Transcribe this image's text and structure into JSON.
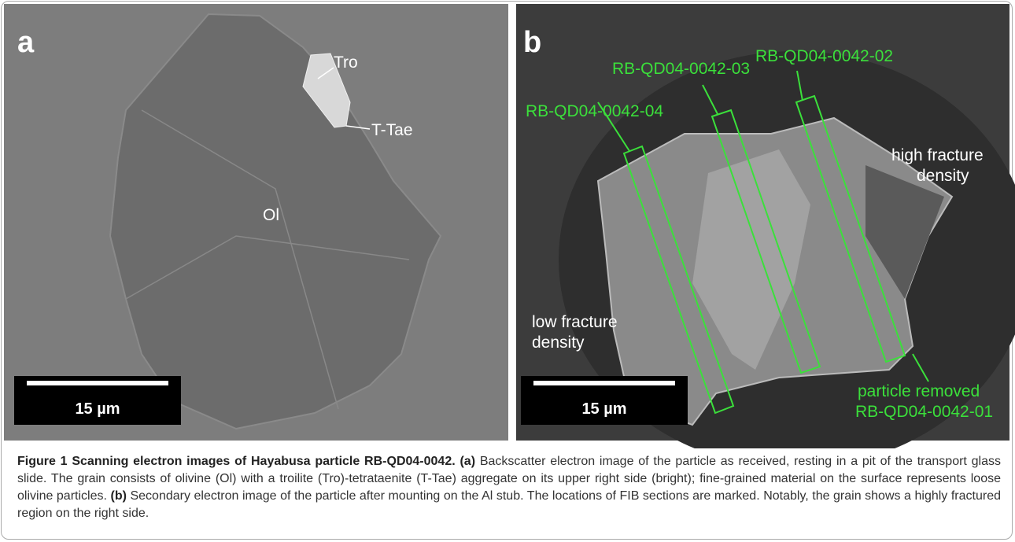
{
  "panels": [
    {
      "label": "a",
      "annotations": [
        "Tro",
        "T-Tae",
        "Ol"
      ],
      "scale_bar": "15 µm"
    },
    {
      "label": "b",
      "annotations": [
        "RB-QD04-0042-04",
        "RB-QD04-0042-03",
        "RB-QD04-0042-02",
        [
          "high fracture",
          "density"
        ],
        [
          "low fracture",
          "density"
        ],
        [
          "particle removed",
          "RB-QD04-0042-01"
        ]
      ],
      "scale_bar": "15 µm"
    }
  ],
  "caption": {
    "title": "Figure 1 Scanning electron images of Hayabusa particle RB-QD04-0042.",
    "parts": [
      {
        "label": "(a)",
        "text": "Backscatter electron image of the particle as received, resting in a pit of the transport glass slide. The grain consists of olivine (Ol) with a troilite (Tro)-tetrataenite (T-Tae) aggregate on its upper right side (bright); fine-grained material on the surface represents loose olivine particles."
      },
      {
        "label": "(b)",
        "text": "Secondary electron image of the particle after mounting on the Al stub. The locations of FIB sections are marked. Notably, the grain shows a highly fractured region on the right side."
      }
    ]
  }
}
